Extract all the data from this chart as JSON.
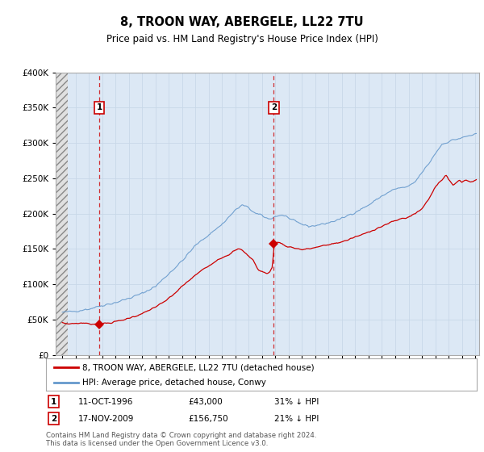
{
  "title": "8, TROON WAY, ABERGELE, LL22 7TU",
  "subtitle": "Price paid vs. HM Land Registry's House Price Index (HPI)",
  "legend_line1": "8, TROON WAY, ABERGELE, LL22 7TU (detached house)",
  "legend_line2": "HPI: Average price, detached house, Conwy",
  "annotation1": {
    "label": "1",
    "date_str": "11-OCT-1996",
    "price_str": "£43,000",
    "pct_str": "31% ↓ HPI",
    "x_year": 1996.78,
    "y_price": 43000
  },
  "annotation2": {
    "label": "2",
    "date_str": "17-NOV-2009",
    "price_str": "£156,750",
    "pct_str": "21% ↓ HPI",
    "x_year": 2009.88,
    "y_price": 156750
  },
  "footer": "Contains HM Land Registry data © Crown copyright and database right 2024.\nThis data is licensed under the Open Government Licence v3.0.",
  "price_color": "#cc0000",
  "hpi_color": "#6699cc",
  "background_color": "#dce8f5",
  "ylim": [
    0,
    400000
  ],
  "xlim_start": 1993.5,
  "xlim_end": 2025.3
}
